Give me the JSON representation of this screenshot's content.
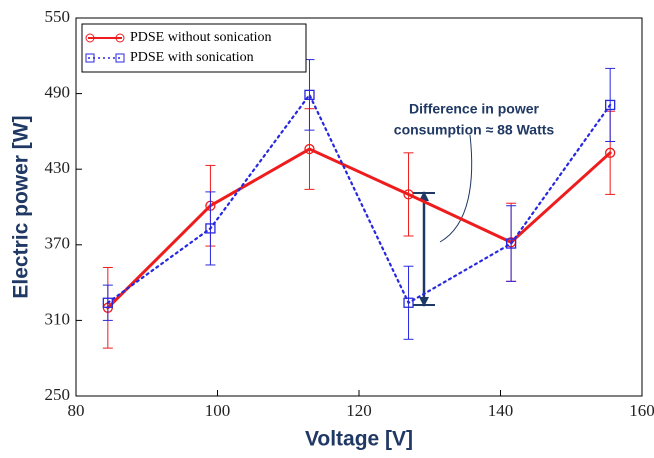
{
  "chart_data": {
    "type": "line",
    "xlabel": "Voltage [V]",
    "ylabel": "Electric power [W]",
    "x": [
      84.5,
      99,
      113,
      127,
      141.5,
      155.5
    ],
    "series": [
      {
        "name": "PDSE without sonication",
        "color": "#ee1c1c",
        "values": [
          320,
          401,
          446,
          410,
          372,
          443
        ],
        "errors": [
          32,
          32,
          32,
          33,
          31,
          33
        ]
      },
      {
        "name": "PDSE with sonication",
        "color": "#2828e0",
        "values": [
          324,
          383,
          489,
          324,
          371,
          481
        ],
        "errors": [
          14,
          29,
          28,
          29,
          30,
          29
        ]
      }
    ],
    "xlim": [
      80,
      160
    ],
    "xticks": [
      80,
      100,
      120,
      140,
      160
    ],
    "ylim": [
      250,
      550
    ],
    "yticks": [
      250,
      310,
      370,
      430,
      490,
      550
    ],
    "annotation": [
      "Difference in power",
      "consumption ≈ 88 Watts"
    ],
    "legend": "upper left"
  }
}
